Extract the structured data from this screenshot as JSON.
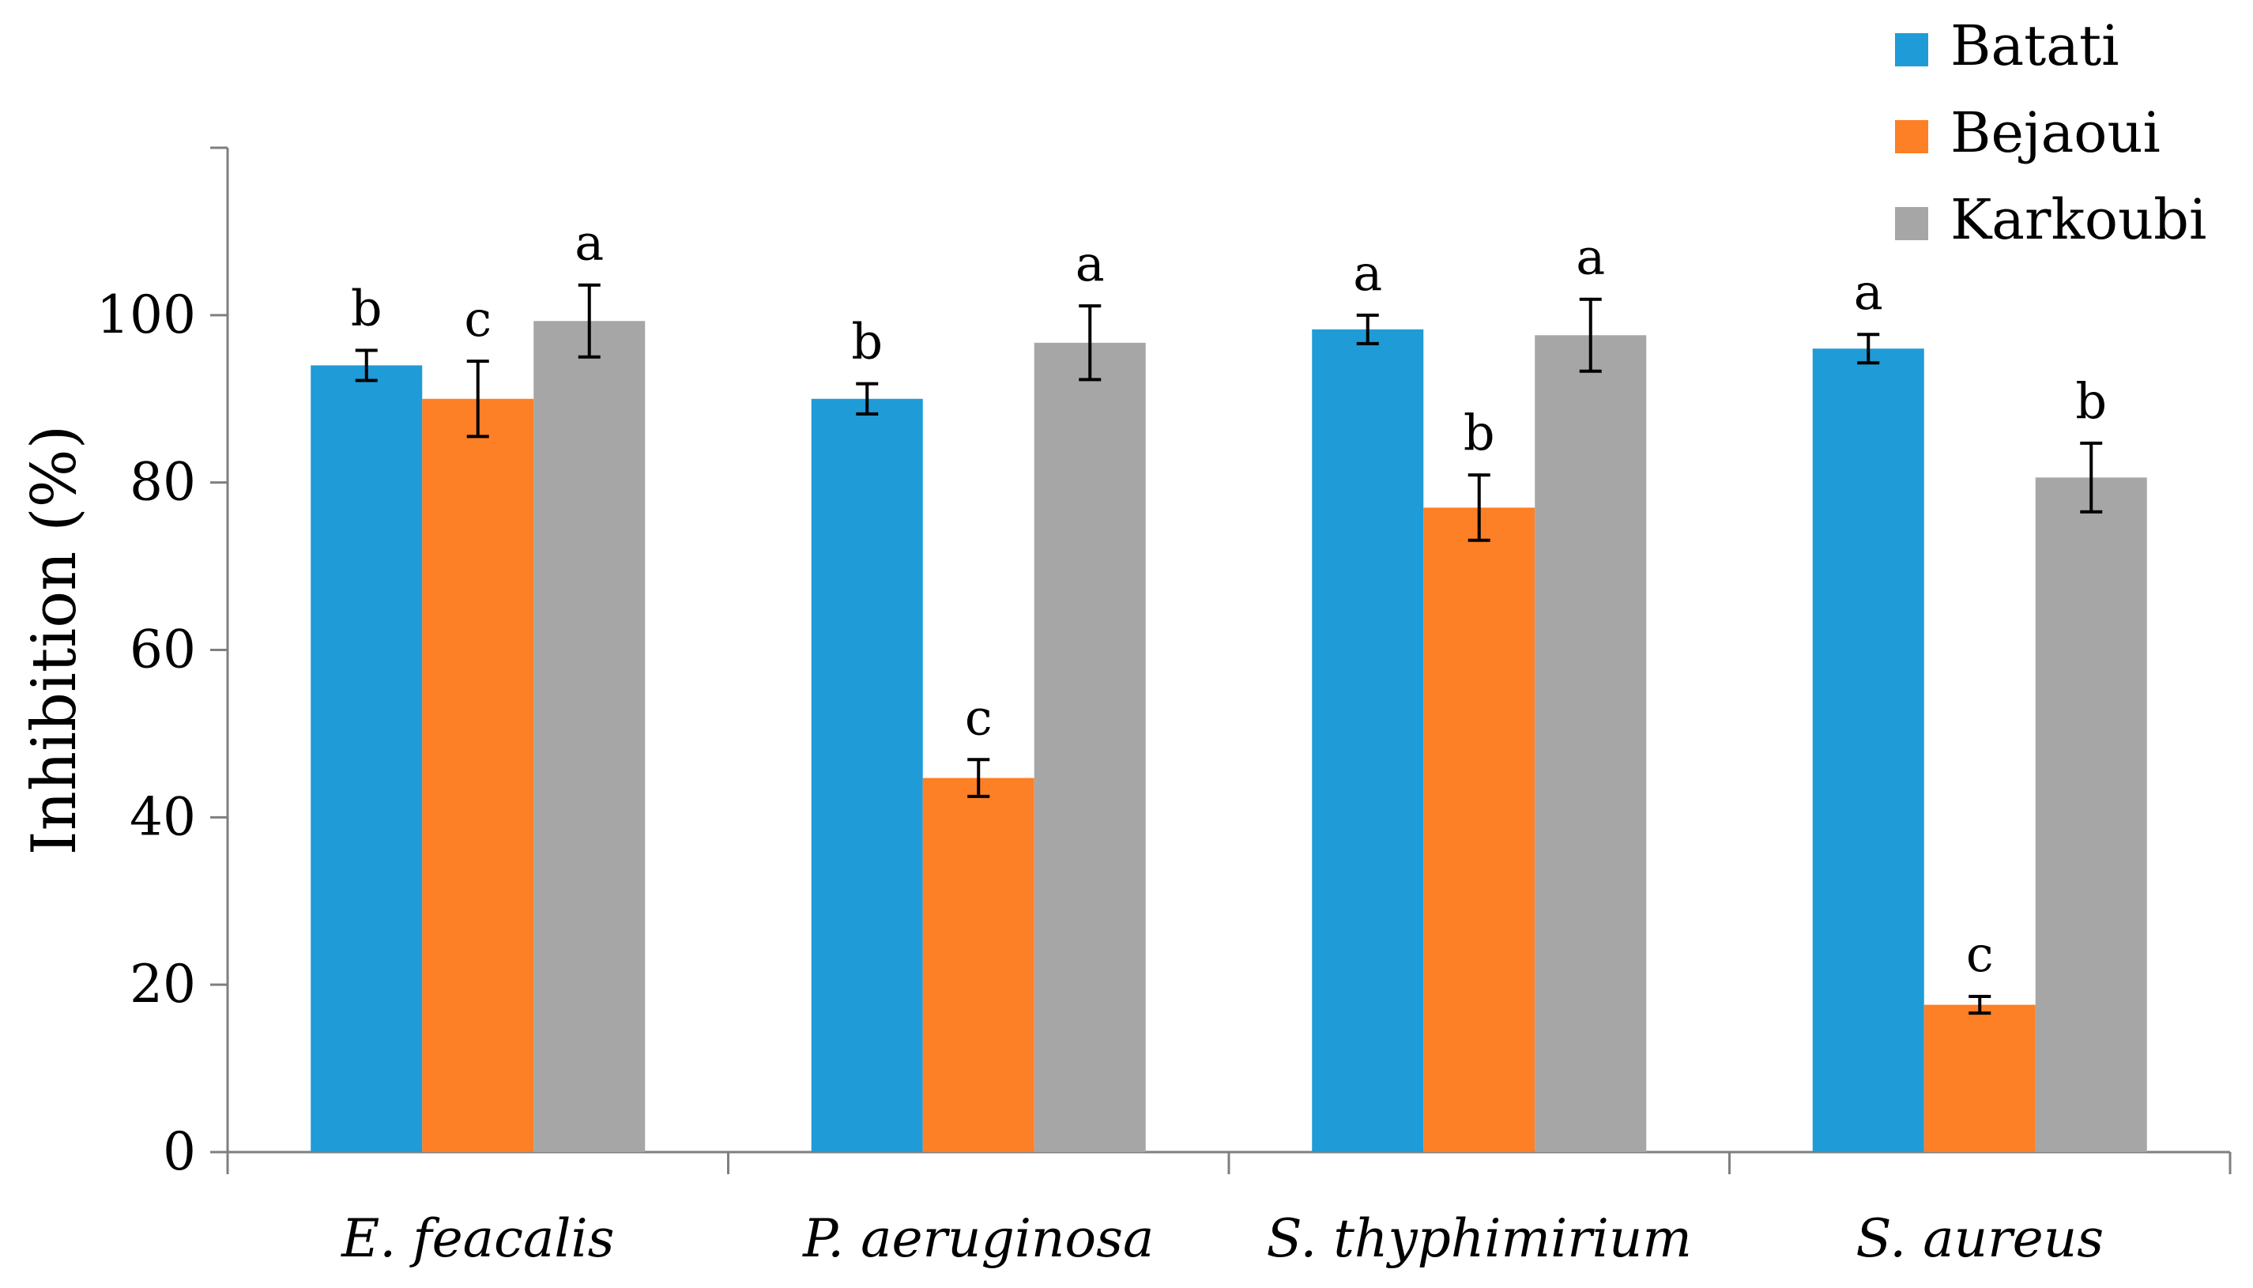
{
  "chart_data": {
    "type": "bar",
    "title": "",
    "xlabel": "",
    "ylabel": "Inhibition (%)",
    "ylim": [
      0,
      120
    ],
    "yticks": [
      0,
      20,
      40,
      60,
      80,
      100
    ],
    "grid": false,
    "legend_position": "top-right",
    "categories": [
      "E. feacalis",
      "P. aeruginosa",
      "S. thyphimirium",
      "S. aureus"
    ],
    "series": [
      {
        "name": "Batati",
        "color": "#1f9bd7",
        "values": [
          94,
          90,
          98.3,
          96
        ],
        "errors": [
          1.8,
          1.8,
          1.7,
          1.7
        ],
        "letters": [
          "b",
          "b",
          "a",
          "a"
        ]
      },
      {
        "name": "Bejaoui",
        "color": "#fd7f26",
        "values": [
          90,
          44.7,
          77,
          17.6
        ],
        "errors": [
          4.5,
          2.2,
          3.9,
          1.0
        ],
        "letters": [
          "c",
          "c",
          "b",
          "c"
        ]
      },
      {
        "name": "Karkoubi",
        "color": "#a6a6a6",
        "values": [
          99.3,
          96.7,
          97.6,
          80.6
        ],
        "errors": [
          4.3,
          4.4,
          4.3,
          4.1
        ],
        "letters": [
          "a",
          "a",
          "a",
          "b"
        ]
      }
    ]
  }
}
